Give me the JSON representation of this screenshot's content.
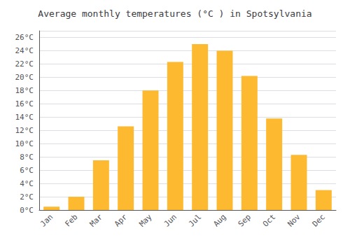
{
  "chart_data": {
    "type": "bar",
    "title": "Average monthly temperatures (°C ) in Spotsylvania",
    "categories": [
      "Jan",
      "Feb",
      "Mar",
      "Apr",
      "May",
      "Jun",
      "Jul",
      "Aug",
      "Sep",
      "Oct",
      "Nov",
      "Dec"
    ],
    "values": [
      0.5,
      2.0,
      7.5,
      12.6,
      18.0,
      22.3,
      25.0,
      24.0,
      20.2,
      13.8,
      8.3,
      3.0
    ],
    "color": "#FDB930",
    "ylim": [
      0,
      27
    ],
    "yticks": [
      {
        "value": 0,
        "label": "0°C"
      },
      {
        "value": 2,
        "label": "2°C"
      },
      {
        "value": 4,
        "label": "4°C"
      },
      {
        "value": 6,
        "label": "6°C"
      },
      {
        "value": 8,
        "label": "8°C"
      },
      {
        "value": 10,
        "label": "10°C"
      },
      {
        "value": 12,
        "label": "12°C"
      },
      {
        "value": 14,
        "label": "14°C"
      },
      {
        "value": 16,
        "label": "16°C"
      },
      {
        "value": 18,
        "label": "18°C"
      },
      {
        "value": 20,
        "label": "20°C"
      },
      {
        "value": 22,
        "label": "22°C"
      },
      {
        "value": 24,
        "label": "24°C"
      },
      {
        "value": 26,
        "label": "26°C"
      }
    ],
    "grid": true
  }
}
